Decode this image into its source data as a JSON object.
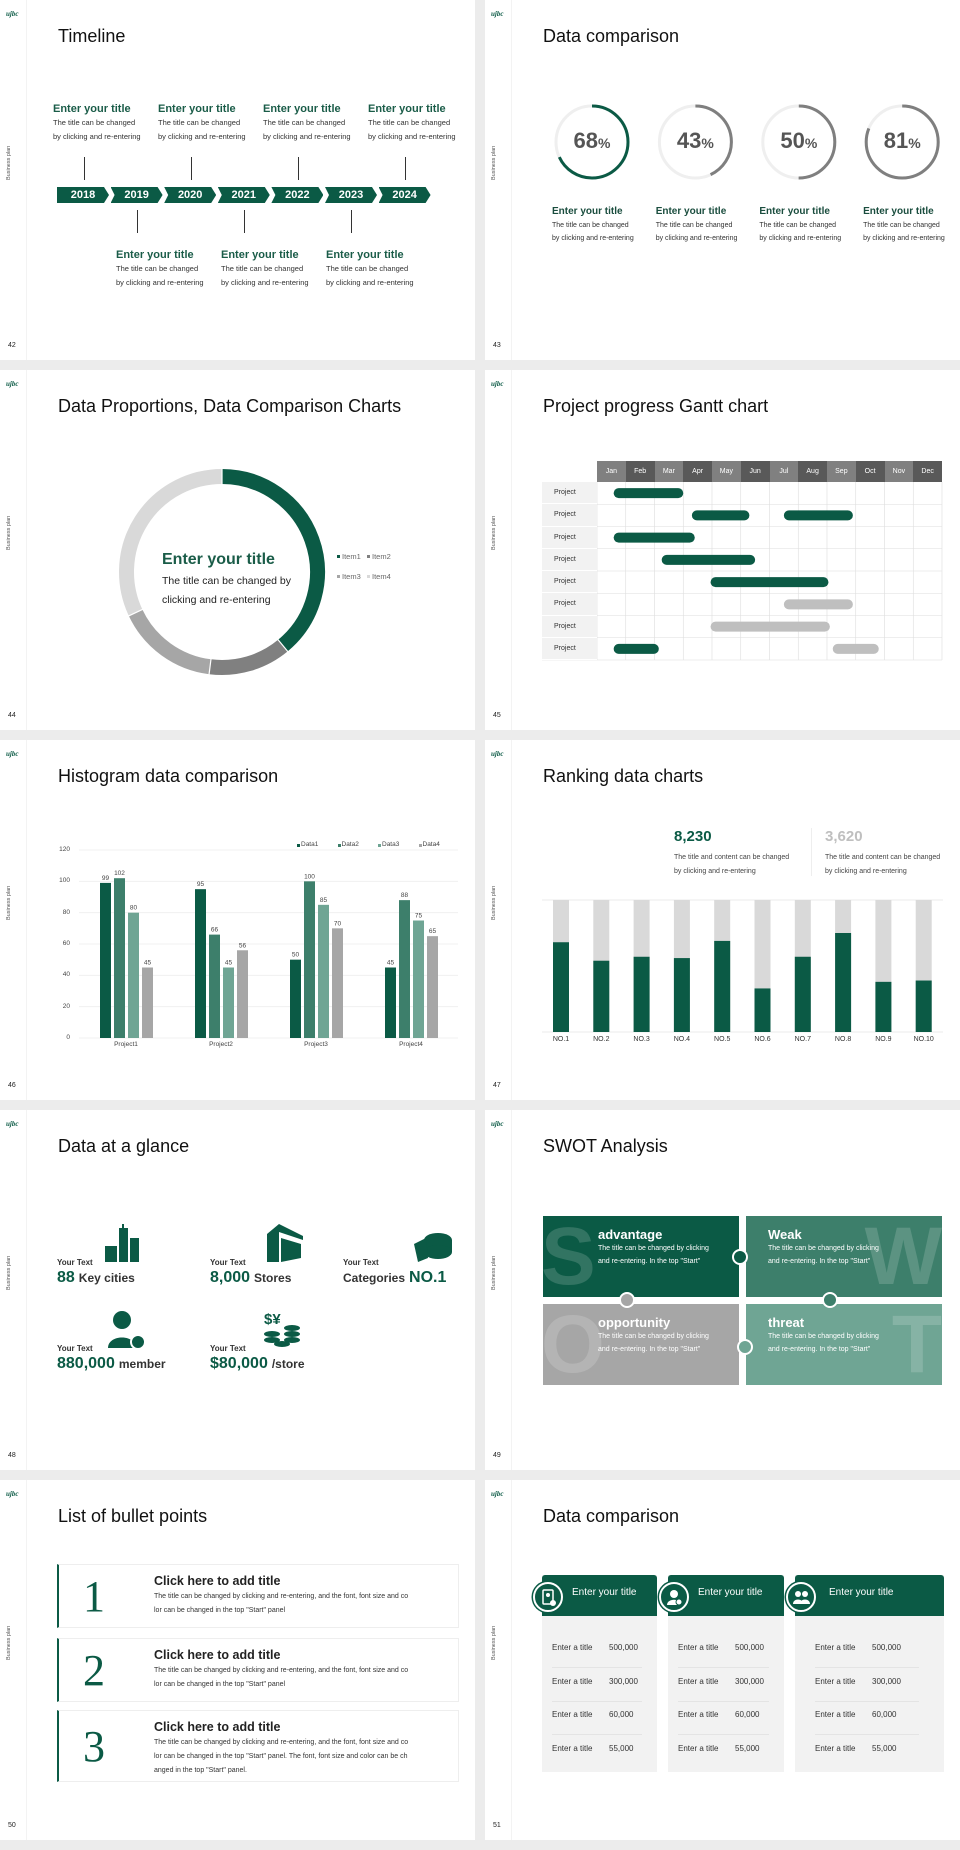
{
  "common": {
    "logo": "ujbc",
    "side_label": "Business plan",
    "accent": "#0b5a45"
  },
  "slides": [
    {
      "page": "42",
      "title": "Timeline",
      "years": [
        "2018",
        "2019",
        "2020",
        "2021",
        "2022",
        "2023",
        "2024"
      ],
      "items": [
        {
          "title": "Enter your title",
          "desc1": "The title can be changed",
          "desc2": "by clicking and re-entering"
        },
        {
          "title": "Enter your title",
          "desc1": "The title can be changed",
          "desc2": "by clicking and re-entering"
        },
        {
          "title": "Enter your title",
          "desc1": "The title can be changed",
          "desc2": "by clicking and re-entering"
        },
        {
          "title": "Enter your title",
          "desc1": "The title can be changed",
          "desc2": "by clicking and re-entering"
        },
        {
          "title": "Enter your title",
          "desc1": "The title can be changed",
          "desc2": "by clicking and re-entering"
        },
        {
          "title": "Enter your title",
          "desc1": "The title can be changed",
          "desc2": "by clicking and re-entering"
        },
        {
          "title": "Enter your title",
          "desc1": "The title can be changed",
          "desc2": "by clicking and re-entering"
        }
      ]
    },
    {
      "page": "43",
      "title": "Data comparison",
      "rings": [
        {
          "value": "68",
          "unit": "%",
          "progress": 68,
          "color": "#0b5a45",
          "title": "Enter your title",
          "desc1": "The title can be changed",
          "desc2": "by clicking and re-entering"
        },
        {
          "value": "43",
          "unit": "%",
          "progress": 43,
          "color": "#7f7f7f",
          "title": "Enter your title",
          "desc1": "The title can be changed",
          "desc2": "by clicking and re-entering"
        },
        {
          "value": "50",
          "unit": "%",
          "progress": 50,
          "color": "#7f7f7f",
          "title": "Enter your title",
          "desc1": "The title can be changed",
          "desc2": "by clicking and re-entering"
        },
        {
          "value": "81",
          "unit": "%",
          "progress": 81,
          "color": "#7f7f7f",
          "title": "Enter your title",
          "desc1": "The title can be changed",
          "desc2": "by clicking and re-entering"
        }
      ]
    },
    {
      "page": "44",
      "title": "Data Proportions, Data Comparison Charts",
      "center_title": "Enter your title",
      "center_desc1": "The title can be changed by",
      "center_desc2": "clicking and re-entering"
    },
    {
      "page": "45",
      "title": "Project progress Gantt chart",
      "months": [
        "Jan",
        "Feb",
        "Mar",
        "Apr",
        "May",
        "Jun",
        "Jul",
        "Aug",
        "Sep",
        "Oct",
        "Nov",
        "Dec"
      ],
      "rows": [
        {
          "label": "Project",
          "bars": [
            {
              "start": 0.58,
              "end": 3.0,
              "color": "#0b5a45"
            }
          ]
        },
        {
          "label": "Project",
          "bars": [
            {
              "start": 3.3,
              "end": 5.3,
              "color": "#0b5a45"
            },
            {
              "start": 6.5,
              "end": 8.9,
              "color": "#0b5a45"
            }
          ]
        },
        {
          "label": "Project",
          "bars": [
            {
              "start": 0.58,
              "end": 3.4,
              "color": "#0b5a45"
            }
          ]
        },
        {
          "label": "Project",
          "bars": [
            {
              "start": 2.25,
              "end": 5.5,
              "color": "#0b5a45"
            }
          ]
        },
        {
          "label": "Project",
          "bars": [
            {
              "start": 3.95,
              "end": 8.05,
              "color": "#0b5a45"
            }
          ]
        },
        {
          "label": "Project",
          "bars": [
            {
              "start": 6.5,
              "end": 8.9,
              "color": "#bfbfbf"
            }
          ]
        },
        {
          "label": "Project",
          "bars": [
            {
              "start": 3.95,
              "end": 8.1,
              "color": "#bfbfbf"
            }
          ]
        },
        {
          "label": "Project",
          "bars": [
            {
              "start": 0.58,
              "end": 2.15,
              "color": "#0b5a45"
            },
            {
              "start": 8.2,
              "end": 9.8,
              "color": "#bfbfbf"
            }
          ]
        }
      ]
    },
    {
      "page": "46",
      "title": "Histogram data comparison"
    },
    {
      "page": "47",
      "title": "Ranking data charts",
      "stats": [
        {
          "value": "8,230",
          "color": "#0b5a45",
          "desc1": "The title and content can be changed",
          "desc2": "by clicking and re-entering"
        },
        {
          "value": "3,620",
          "color": "#bfbfbf",
          "desc1": "The title and content can be changed",
          "desc2": "by clicking and re-entering"
        }
      ]
    },
    {
      "page": "48",
      "title": "Data at a glance",
      "items": [
        {
          "label": "Your Text",
          "before": "",
          "value": "88",
          "after": "Key cities",
          "icon": "city-buildings-icon"
        },
        {
          "label": "Your Text",
          "before": "",
          "value": "8,000",
          "after": "Stores",
          "icon": "store-icon"
        },
        {
          "label": "Your Text",
          "before": "Categories",
          "value": "NO.1",
          "after": "",
          "icon": "cheese-wheel-icon"
        },
        {
          "label": "Your Text",
          "before": "",
          "value": "880,000",
          "after": "member",
          "icon": "add-member-icon"
        },
        {
          "label": "Your Text",
          "before": "",
          "value": "$80,000",
          "after": "/store",
          "icon": "coins-icon"
        }
      ]
    },
    {
      "page": "49",
      "title": "SWOT Analysis",
      "tiles": [
        {
          "letter": "S",
          "title": "advantage",
          "desc1": "The title can be changed by clicking",
          "desc2": "and re-entering. In the top \"Start\"",
          "color": "#0b5a45"
        },
        {
          "letter": "W",
          "title": "Weak",
          "desc1": "The title can be changed by clicking",
          "desc2": "and re-entering. In the top \"Start\"",
          "color": "#3d7f6b"
        },
        {
          "letter": "O",
          "title": "opportunity",
          "desc1": "The title can be changed by clicking",
          "desc2": "and re-entering. In the top \"Start\"",
          "color": "#a6a6a6"
        },
        {
          "letter": "T",
          "title": "threat",
          "desc1": "The title can be changed by clicking",
          "desc2": "and re-entering. In the top \"Start\"",
          "color": "#6fa594"
        }
      ]
    },
    {
      "page": "50",
      "title": "List of bullet points",
      "bullets": [
        {
          "num": "1",
          "title": "Click here to add title",
          "lines": [
            "The title can be changed by clicking and re-entering, and the font, font size and co",
            "lor can be changed in the top \"Start\" panel"
          ]
        },
        {
          "num": "2",
          "title": "Click here to add title",
          "lines": [
            "The title can be changed by clicking and re-entering, and the font, font size and co",
            "lor can be changed in the top \"Start\" panel"
          ]
        },
        {
          "num": "3",
          "title": "Click here to add title",
          "lines": [
            "The title can be changed by clicking and re-entering, and the font, font size and co",
            "lor can be changed in the top \"Start\" panel. The font, font size and color can be ch",
            "anged in the top \"Start\" panel."
          ]
        }
      ]
    },
    {
      "page": "51",
      "title": "Data comparison",
      "cards": [
        {
          "title": "Enter your title",
          "icon": "tablet-user-icon",
          "rows": [
            {
              "label": "Enter a title",
              "value": "500,000"
            },
            {
              "label": "Enter a title",
              "value": "300,000"
            },
            {
              "label": "Enter a title",
              "value": "60,000"
            },
            {
              "label": "Enter a title",
              "value": "55,000"
            }
          ]
        },
        {
          "title": "Enter your title",
          "icon": "user-shield-icon",
          "rows": [
            {
              "label": "Enter a title",
              "value": "500,000"
            },
            {
              "label": "Enter a title",
              "value": "300,000"
            },
            {
              "label": "Enter a title",
              "value": "60,000"
            },
            {
              "label": "Enter a title",
              "value": "55,000"
            }
          ]
        },
        {
          "title": "Enter your title",
          "icon": "user-group-icon",
          "rows": [
            {
              "label": "Enter a title",
              "value": "500,000"
            },
            {
              "label": "Enter a title",
              "value": "300,000"
            },
            {
              "label": "Enter a title",
              "value": "60,000"
            },
            {
              "label": "Enter a title",
              "value": "55,000"
            }
          ]
        }
      ]
    }
  ],
  "chart_data": [
    {
      "type": "pie",
      "variant": "donut",
      "categories": [
        "Item1",
        "Item2",
        "Item3",
        "Item4"
      ],
      "values": [
        39,
        13,
        16,
        32
      ],
      "colors": [
        "#0b5a45",
        "#808080",
        "#a6a6a6",
        "#d9d9d9"
      ],
      "legend": "right"
    },
    {
      "type": "bar",
      "categories": [
        "Project1",
        "Project2",
        "Project3",
        "Project4"
      ],
      "series": [
        {
          "name": "Data1",
          "values": [
            99,
            95,
            50,
            45
          ],
          "color": "#0b5a45"
        },
        {
          "name": "Data2",
          "values": [
            102,
            66,
            100,
            88
          ],
          "color": "#3d7f6b"
        },
        {
          "name": "Data3",
          "values": [
            80,
            45,
            85,
            75
          ],
          "color": "#6fa594"
        },
        {
          "name": "Data4",
          "values": [
            45,
            56,
            70,
            65
          ],
          "color": "#a6a6a6"
        }
      ],
      "yticks": [
        "0",
        "20",
        "40",
        "60",
        "80",
        "100",
        "120"
      ],
      "ylim": [
        0,
        120
      ],
      "grid": true,
      "legend": "top-right"
    },
    {
      "type": "bar",
      "stacked_to_full": true,
      "categories": [
        "NO.1",
        "NO.2",
        "NO.3",
        "NO.4",
        "NO.5",
        "NO.6",
        "NO.7",
        "NO.8",
        "NO.9",
        "NO.10"
      ],
      "values": [
        68,
        54,
        57,
        56,
        69,
        33,
        57,
        75,
        38,
        39
      ],
      "ylim": [
        0,
        100
      ],
      "colors": [
        "#0b5a45",
        "#d9d9d9"
      ]
    }
  ]
}
